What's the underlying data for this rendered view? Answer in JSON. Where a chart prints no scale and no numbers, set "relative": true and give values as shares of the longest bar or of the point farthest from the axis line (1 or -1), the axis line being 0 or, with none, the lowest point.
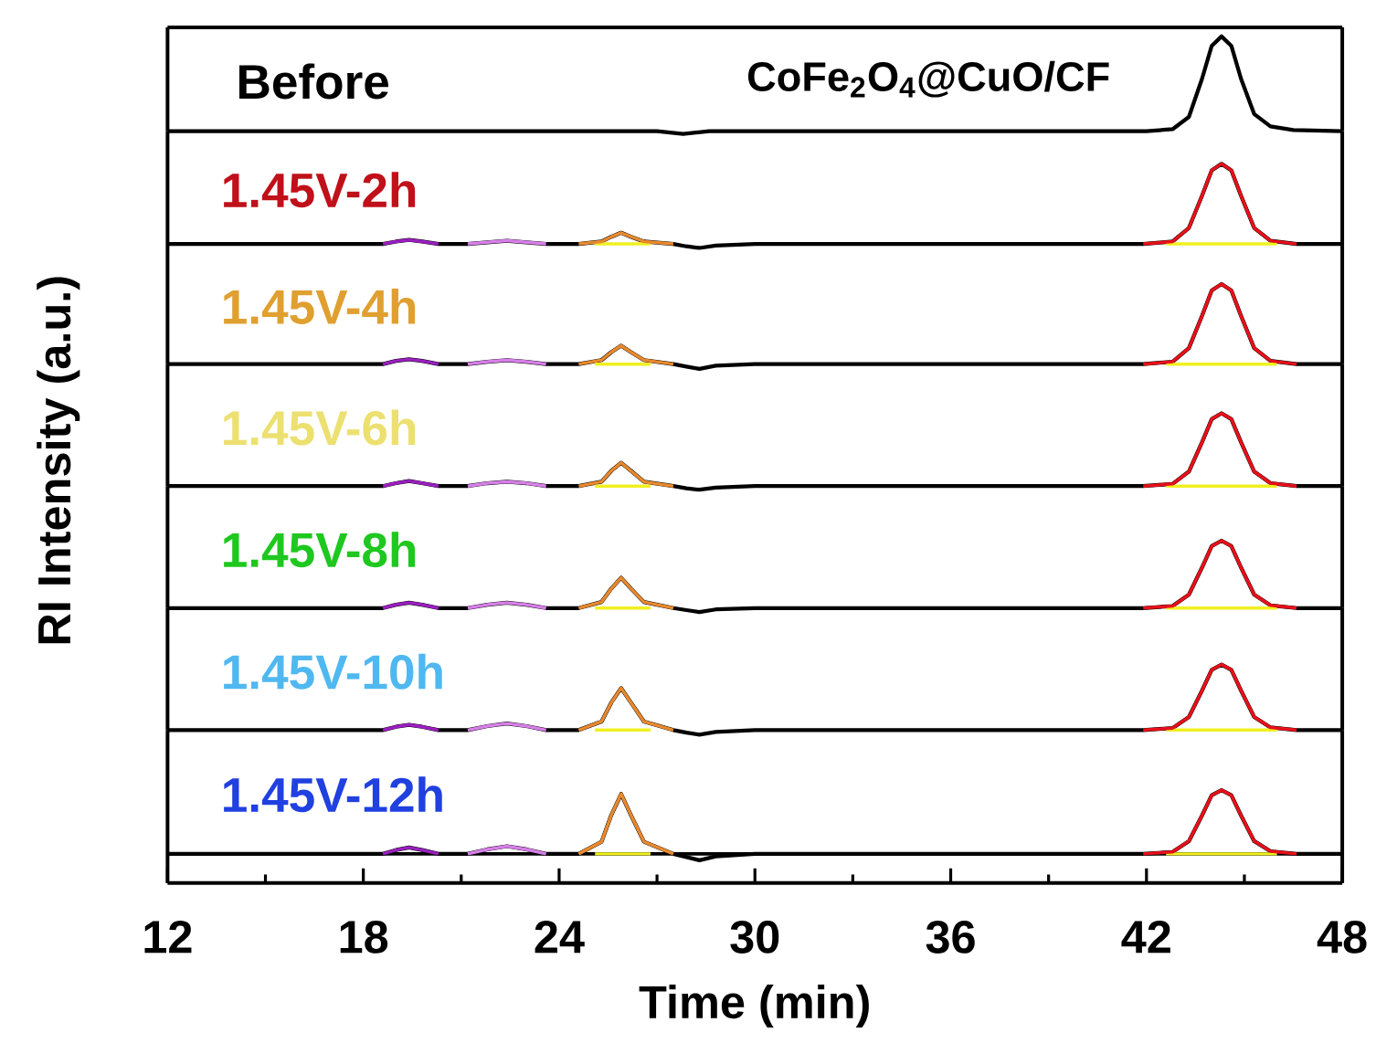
{
  "chart_data": [
    {
      "type": "line",
      "relative": true,
      "title": "Before",
      "annotations": [
        "CoFe$_{2}$O$_{4}$@CuO/CF"
      ],
      "xlim": [
        12,
        48
      ],
      "series": [
        {
          "color": "#000000",
          "x": [
            12,
            27,
            27.8,
            28.6,
            30,
            42,
            42.8,
            43.3,
            43.7,
            44.0,
            44.3,
            44.6,
            44.9,
            45.3,
            45.8,
            46.5,
            48
          ],
          "values": [
            0,
            0,
            -0.03,
            0,
            0,
            0,
            0.02,
            0.15,
            0.55,
            0.9,
            1,
            0.9,
            0.55,
            0.18,
            0.05,
            0.01,
            0
          ]
        }
      ]
    },
    {
      "type": "line",
      "relative": true,
      "title": "1.45V-2h",
      "xlim": [
        12,
        48
      ],
      "series": [
        {
          "color": "#000000",
          "x": [
            12,
            18.6,
            19.0,
            19.4,
            19.8,
            20.3,
            21.2,
            21.8,
            22.4,
            23.0,
            23.6,
            24.6,
            25.3,
            25.6,
            25.9,
            26.2,
            26.6,
            27.5,
            27.9,
            28.3,
            28.8,
            30,
            36,
            41.9,
            42.8,
            43.3,
            43.7,
            44.0,
            44.3,
            44.6,
            44.9,
            45.3,
            45.8,
            46.6,
            48
          ],
          "values": [
            0,
            0,
            0.03,
            0.05,
            0.03,
            0,
            0,
            0.02,
            0.04,
            0.02,
            0,
            0,
            0.03,
            0.09,
            0.14,
            0.09,
            0.03,
            0,
            -0.03,
            -0.05,
            -0.02,
            0,
            0,
            0,
            0.03,
            0.2,
            0.6,
            0.92,
            1,
            0.92,
            0.6,
            0.2,
            0.04,
            0,
            0
          ]
        },
        {
          "color": "#f0f020",
          "x": [
            25.1,
            26.8,
            27.0,
            42.6,
            46.0
          ],
          "values": [
            0,
            0,
            null,
            0,
            0
          ]
        },
        {
          "color": "#9b1fc0",
          "x": [
            18.6,
            19.0,
            19.4,
            19.8,
            20.3
          ],
          "values": [
            0,
            0.03,
            0.05,
            0.03,
            0
          ]
        },
        {
          "color": "#d77fe8",
          "x": [
            21.2,
            21.8,
            22.4,
            23.0,
            23.6
          ],
          "values": [
            0,
            0.02,
            0.04,
            0.02,
            0
          ]
        },
        {
          "color": "#e8892e",
          "x": [
            24.6,
            25.3,
            25.6,
            25.9,
            26.2,
            26.6,
            27.5
          ],
          "values": [
            0,
            0.03,
            0.09,
            0.14,
            0.09,
            0.03,
            0
          ]
        },
        {
          "color": "#e8101a",
          "x": [
            41.9,
            42.8,
            43.3,
            43.7,
            44.0,
            44.3,
            44.6,
            44.9,
            45.3,
            45.8,
            46.6
          ],
          "values": [
            0,
            0.03,
            0.2,
            0.6,
            0.92,
            1,
            0.92,
            0.6,
            0.2,
            0.04,
            0
          ]
        }
      ]
    },
    {
      "type": "line",
      "relative": true,
      "title": "1.45V-4h",
      "xlim": [
        12,
        48
      ],
      "series": [
        {
          "color": "#000000",
          "x": [
            12,
            18.6,
            19.0,
            19.4,
            19.8,
            20.3,
            21.2,
            21.8,
            22.4,
            23.0,
            23.6,
            24.6,
            25.3,
            25.6,
            25.9,
            26.2,
            26.6,
            27.5,
            27.9,
            28.3,
            28.8,
            30,
            36,
            41.9,
            42.8,
            43.3,
            43.7,
            44.0,
            44.3,
            44.6,
            44.9,
            45.3,
            45.8,
            46.6,
            48
          ],
          "values": [
            0,
            0,
            0.04,
            0.06,
            0.04,
            0,
            0,
            0.03,
            0.05,
            0.03,
            0,
            0,
            0.05,
            0.15,
            0.23,
            0.15,
            0.05,
            0,
            -0.03,
            -0.06,
            -0.02,
            0,
            0,
            0,
            0.03,
            0.2,
            0.6,
            0.92,
            1,
            0.92,
            0.6,
            0.2,
            0.04,
            0,
            0
          ]
        },
        {
          "color": "#f0f020",
          "x": [
            25.1,
            26.8,
            27.0,
            42.6,
            46.0
          ],
          "values": [
            0,
            0,
            null,
            0,
            0
          ]
        },
        {
          "color": "#9b1fc0",
          "x": [
            18.6,
            19.0,
            19.4,
            19.8,
            20.3
          ],
          "values": [
            0,
            0.04,
            0.06,
            0.04,
            0
          ]
        },
        {
          "color": "#d77fe8",
          "x": [
            21.2,
            21.8,
            22.4,
            23.0,
            23.6
          ],
          "values": [
            0,
            0.03,
            0.05,
            0.03,
            0
          ]
        },
        {
          "color": "#e8892e",
          "x": [
            24.6,
            25.3,
            25.6,
            25.9,
            26.2,
            26.6,
            27.5
          ],
          "values": [
            0,
            0.05,
            0.15,
            0.23,
            0.15,
            0.05,
            0
          ]
        },
        {
          "color": "#e8101a",
          "x": [
            41.9,
            42.8,
            43.3,
            43.7,
            44.0,
            44.3,
            44.6,
            44.9,
            45.3,
            45.8,
            46.6
          ],
          "values": [
            0,
            0.03,
            0.2,
            0.6,
            0.92,
            1,
            0.92,
            0.6,
            0.2,
            0.04,
            0
          ]
        }
      ]
    },
    {
      "type": "line",
      "relative": true,
      "title": "1.45V-6h",
      "ylabel": "RI Intensity (a.u.)",
      "xlim": [
        12,
        48
      ],
      "series": [
        {
          "color": "#000000",
          "x": [
            12,
            18.6,
            19.0,
            19.4,
            19.8,
            20.3,
            21.2,
            21.8,
            22.4,
            23.0,
            23.6,
            24.6,
            25.3,
            25.6,
            25.9,
            26.2,
            26.6,
            27.5,
            27.9,
            28.3,
            28.8,
            30,
            36,
            41.9,
            42.8,
            43.3,
            43.7,
            44.0,
            44.3,
            44.6,
            44.9,
            45.3,
            45.8,
            46.6,
            48
          ],
          "values": [
            0,
            0,
            0.04,
            0.07,
            0.04,
            0,
            0,
            0.04,
            0.06,
            0.04,
            0,
            0,
            0.06,
            0.21,
            0.32,
            0.21,
            0.06,
            0,
            -0.03,
            -0.05,
            -0.02,
            0,
            0,
            0,
            0.03,
            0.2,
            0.6,
            0.92,
            1,
            0.92,
            0.6,
            0.2,
            0.04,
            0,
            0
          ]
        },
        {
          "color": "#f0f020",
          "x": [
            25.1,
            26.8,
            27.0,
            42.6,
            46.0
          ],
          "values": [
            0,
            0,
            null,
            0,
            0
          ]
        },
        {
          "color": "#9b1fc0",
          "x": [
            18.6,
            19.0,
            19.4,
            19.8,
            20.3
          ],
          "values": [
            0,
            0.04,
            0.07,
            0.04,
            0
          ]
        },
        {
          "color": "#d77fe8",
          "x": [
            21.2,
            21.8,
            22.4,
            23.0,
            23.6
          ],
          "values": [
            0,
            0.04,
            0.06,
            0.04,
            0
          ]
        },
        {
          "color": "#e8892e",
          "x": [
            24.6,
            25.3,
            25.6,
            25.9,
            26.2,
            26.6,
            27.5
          ],
          "values": [
            0,
            0.06,
            0.21,
            0.32,
            0.21,
            0.06,
            0
          ]
        },
        {
          "color": "#e8101a",
          "x": [
            41.9,
            42.8,
            43.3,
            43.7,
            44.0,
            44.3,
            44.6,
            44.9,
            45.3,
            45.8,
            46.6
          ],
          "values": [
            0,
            0.03,
            0.2,
            0.6,
            0.92,
            1,
            0.92,
            0.6,
            0.2,
            0.04,
            0
          ]
        }
      ]
    },
    {
      "type": "line",
      "relative": true,
      "title": "1.45V-8h",
      "xlim": [
        12,
        48
      ],
      "series": [
        {
          "color": "#000000",
          "x": [
            12,
            18.6,
            19.0,
            19.4,
            19.8,
            20.3,
            21.2,
            21.8,
            22.4,
            23.0,
            23.6,
            24.6,
            25.3,
            25.6,
            25.9,
            26.2,
            26.6,
            27.5,
            27.9,
            28.3,
            28.8,
            30,
            36,
            41.9,
            42.8,
            43.3,
            43.7,
            44.0,
            44.3,
            44.6,
            44.9,
            45.3,
            45.8,
            46.6,
            48
          ],
          "values": [
            0,
            0,
            0.05,
            0.08,
            0.05,
            0,
            0,
            0.05,
            0.08,
            0.05,
            0,
            0,
            0.09,
            0.29,
            0.45,
            0.29,
            0.09,
            0,
            -0.03,
            -0.06,
            -0.02,
            0,
            0,
            0,
            0.03,
            0.2,
            0.6,
            0.92,
            1,
            0.92,
            0.6,
            0.2,
            0.04,
            0,
            0
          ]
        },
        {
          "color": "#f0f020",
          "x": [
            25.1,
            26.8,
            27.0,
            42.6,
            46.0
          ],
          "values": [
            0,
            0,
            null,
            0,
            0
          ]
        },
        {
          "color": "#9b1fc0",
          "x": [
            18.6,
            19.0,
            19.4,
            19.8,
            20.3
          ],
          "values": [
            0,
            0.05,
            0.08,
            0.05,
            0
          ]
        },
        {
          "color": "#d77fe8",
          "x": [
            21.2,
            21.8,
            22.4,
            23.0,
            23.6
          ],
          "values": [
            0,
            0.05,
            0.08,
            0.05,
            0
          ]
        },
        {
          "color": "#e8892e",
          "x": [
            24.6,
            25.3,
            25.6,
            25.9,
            26.2,
            26.6,
            27.5
          ],
          "values": [
            0,
            0.09,
            0.29,
            0.45,
            0.29,
            0.09,
            0
          ]
        },
        {
          "color": "#e8101a",
          "x": [
            41.9,
            42.8,
            43.3,
            43.7,
            44.0,
            44.3,
            44.6,
            44.9,
            45.3,
            45.8,
            46.6
          ],
          "values": [
            0,
            0.03,
            0.2,
            0.6,
            0.92,
            1,
            0.92,
            0.6,
            0.2,
            0.04,
            0
          ]
        }
      ]
    },
    {
      "type": "line",
      "relative": true,
      "title": "1.45V-10h",
      "xlim": [
        12,
        48
      ],
      "series": [
        {
          "color": "#000000",
          "x": [
            12,
            18.6,
            19.0,
            19.4,
            19.8,
            20.3,
            21.2,
            21.8,
            22.4,
            23.0,
            23.6,
            24.6,
            25.3,
            25.6,
            25.9,
            26.2,
            26.6,
            27.5,
            27.9,
            28.3,
            28.8,
            30,
            36,
            41.9,
            42.8,
            43.3,
            43.7,
            44.0,
            44.3,
            44.6,
            44.9,
            45.3,
            45.8,
            46.6,
            48
          ],
          "values": [
            0,
            0,
            0.05,
            0.08,
            0.05,
            0,
            0,
            0.06,
            0.1,
            0.06,
            0,
            0,
            0.13,
            0.42,
            0.64,
            0.42,
            0.13,
            0,
            -0.04,
            -0.07,
            -0.03,
            0,
            0,
            0,
            0.03,
            0.2,
            0.6,
            0.92,
            1,
            0.92,
            0.6,
            0.2,
            0.04,
            0,
            0
          ]
        },
        {
          "color": "#f0f020",
          "x": [
            25.1,
            26.8,
            27.0,
            42.6,
            46.0
          ],
          "values": [
            0,
            0,
            null,
            0,
            0
          ]
        },
        {
          "color": "#9b1fc0",
          "x": [
            18.6,
            19.0,
            19.4,
            19.8,
            20.3
          ],
          "values": [
            0,
            0.05,
            0.08,
            0.05,
            0
          ]
        },
        {
          "color": "#d77fe8",
          "x": [
            21.2,
            21.8,
            22.4,
            23.0,
            23.6
          ],
          "values": [
            0,
            0.06,
            0.1,
            0.06,
            0
          ]
        },
        {
          "color": "#e8892e",
          "x": [
            24.6,
            25.3,
            25.6,
            25.9,
            26.2,
            26.6,
            27.5
          ],
          "values": [
            0,
            0.13,
            0.42,
            0.64,
            0.42,
            0.13,
            0
          ]
        },
        {
          "color": "#e8101a",
          "x": [
            41.9,
            42.8,
            43.3,
            43.7,
            44.0,
            44.3,
            44.6,
            44.9,
            45.3,
            45.8,
            46.6
          ],
          "values": [
            0,
            0.03,
            0.2,
            0.6,
            0.92,
            1,
            0.92,
            0.6,
            0.2,
            0.04,
            0
          ]
        }
      ]
    },
    {
      "type": "line",
      "relative": true,
      "title": "1.45V-12h",
      "xlabel": "Time (min)",
      "xlim": [
        12,
        48
      ],
      "xticks": [
        12,
        18,
        24,
        30,
        36,
        42,
        48
      ],
      "ref_lines": [
        {
          "axis": "y",
          "value": 0
        }
      ],
      "series": [
        {
          "color": "#000000",
          "x": [
            12,
            18.6,
            19.0,
            19.4,
            19.8,
            20.3,
            21.2,
            21.8,
            22.4,
            23.0,
            23.6,
            24.6,
            25.3,
            25.6,
            25.9,
            26.2,
            26.6,
            27.5,
            27.9,
            28.3,
            28.8,
            30,
            36,
            41.9,
            42.8,
            43.3,
            43.7,
            44.0,
            44.3,
            44.6,
            44.9,
            45.3,
            45.8,
            46.6,
            48
          ],
          "values": [
            0,
            0,
            0.06,
            0.1,
            0.06,
            0,
            0,
            0.07,
            0.12,
            0.07,
            0,
            0,
            0.19,
            0.61,
            0.94,
            0.61,
            0.19,
            0,
            -0.05,
            -0.1,
            -0.04,
            0,
            0,
            0,
            0.03,
            0.2,
            0.6,
            0.92,
            1,
            0.92,
            0.6,
            0.2,
            0.04,
            0,
            0
          ]
        },
        {
          "color": "#f0f020",
          "x": [
            25.1,
            26.8,
            27.0,
            42.6,
            46.0
          ],
          "values": [
            0,
            0,
            null,
            0,
            0
          ]
        },
        {
          "color": "#9b1fc0",
          "x": [
            18.6,
            19.0,
            19.4,
            19.8,
            20.3
          ],
          "values": [
            0,
            0.06,
            0.1,
            0.06,
            0
          ]
        },
        {
          "color": "#d77fe8",
          "x": [
            21.2,
            21.8,
            22.4,
            23.0,
            23.6
          ],
          "values": [
            0,
            0.07,
            0.12,
            0.07,
            0
          ]
        },
        {
          "color": "#e8892e",
          "x": [
            24.6,
            25.3,
            25.6,
            25.9,
            26.2,
            26.6,
            27.5
          ],
          "values": [
            0,
            0.19,
            0.61,
            0.94,
            0.61,
            0.19,
            0
          ]
        },
        {
          "color": "#e8101a",
          "x": [
            41.9,
            42.8,
            43.3,
            43.7,
            44.0,
            44.3,
            44.6,
            44.9,
            45.3,
            45.8,
            46.6
          ],
          "values": [
            0,
            0.03,
            0.2,
            0.6,
            0.92,
            1,
            0.92,
            0.6,
            0.2,
            0.04,
            0
          ]
        }
      ]
    }
  ]
}
